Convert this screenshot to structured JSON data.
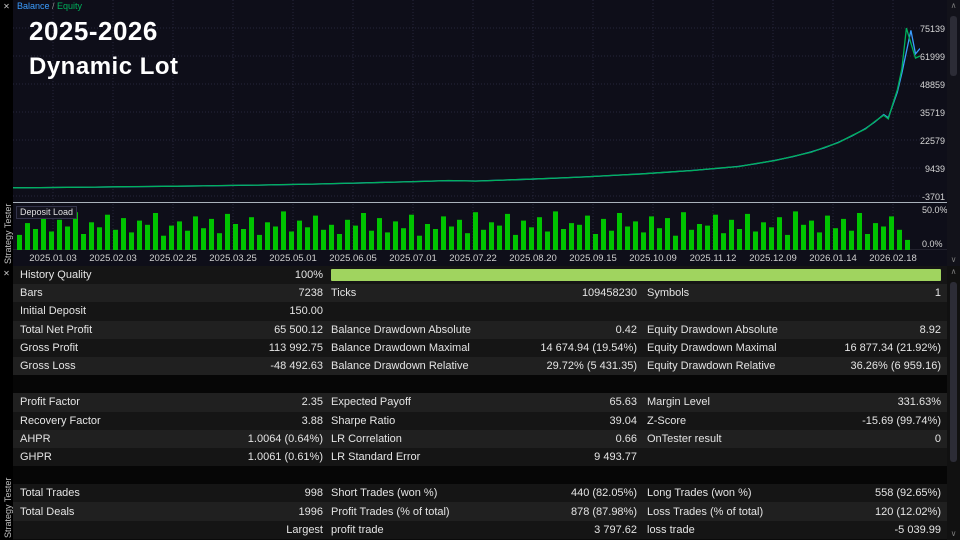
{
  "tabs": {
    "top_label": "Strategy Tester",
    "bottom_label": "Strategy Tester"
  },
  "colors": {
    "balance": "#3b9dff",
    "equity": "#00b15c",
    "deposit": "#00c400",
    "quality_bar": "#a0d45f",
    "chart_bg": "#0e0e19"
  },
  "chart": {
    "legend": {
      "balance": "Balance",
      "sep": " / ",
      "equity": "Equity"
    },
    "overlay_title": "2025-2026",
    "overlay_subtitle": "Dynamic Lot",
    "deposit_label": "Deposit Load",
    "deposit_max_label": "50.0%",
    "deposit_min_label": "0.0%"
  },
  "chart_data": {
    "type": "line",
    "title": "Balance / Equity backtest curve",
    "y_ticks": [
      75139,
      61999,
      48859,
      35719,
      22579,
      9439,
      -3701
    ],
    "ylim": [
      -3701,
      75139
    ],
    "x_ticks": [
      "2025.01.03",
      "2025.02.03",
      "2025.02.25",
      "2025.03.25",
      "2025.05.01",
      "2025.06.05",
      "2025.07.01",
      "2025.07.22",
      "2025.08.20",
      "2025.09.15",
      "2025.10.09",
      "2025.11.12",
      "2025.12.09",
      "2026.01.14",
      "2026.02.18"
    ],
    "x": [
      0,
      0.03,
      0.06,
      0.09,
      0.12,
      0.15,
      0.18,
      0.21,
      0.24,
      0.27,
      0.3,
      0.33,
      0.36,
      0.39,
      0.42,
      0.45,
      0.48,
      0.51,
      0.54,
      0.57,
      0.6,
      0.63,
      0.66,
      0.69,
      0.72,
      0.75,
      0.78,
      0.8,
      0.82,
      0.84,
      0.86,
      0.88,
      0.895,
      0.91,
      0.925,
      0.94,
      0.95,
      0.96,
      0.965,
      0.97,
      0.975,
      0.98,
      0.985,
      0.99,
      0.995,
      1.0
    ],
    "series": [
      {
        "name": "Balance",
        "color": "#3b9dff",
        "values": [
          150,
          250,
          350,
          480,
          620,
          760,
          900,
          1060,
          1240,
          1430,
          1650,
          1900,
          2180,
          2480,
          2800,
          3150,
          3520,
          3350,
          3750,
          4200,
          4700,
          5250,
          5900,
          6600,
          7400,
          8300,
          9400,
          10200,
          11500,
          13000,
          14800,
          17000,
          19000,
          21500,
          24500,
          28000,
          31000,
          34500,
          33000,
          39000,
          45000,
          54000,
          64000,
          74000,
          63000,
          65500
        ]
      },
      {
        "name": "Equity",
        "color": "#00b15c",
        "values": [
          150,
          240,
          370,
          460,
          640,
          740,
          920,
          1040,
          1260,
          1410,
          1680,
          1870,
          2210,
          2450,
          2830,
          3120,
          3560,
          3300,
          3780,
          4170,
          4730,
          5210,
          5950,
          6550,
          7450,
          8250,
          9470,
          10100,
          11600,
          12900,
          14900,
          16800,
          19200,
          21300,
          24700,
          27800,
          31200,
          34200,
          32500,
          39500,
          46000,
          56000,
          75100,
          68000,
          61000,
          62000
        ]
      }
    ],
    "deposit_load": {
      "type": "bar",
      "color": "#00c400",
      "ylim_percent": [
        0,
        50
      ],
      "values": [
        18,
        32,
        25,
        41,
        22,
        36,
        28,
        45,
        19,
        33,
        27,
        42,
        24,
        38,
        21,
        35,
        30,
        44,
        17,
        29,
        34,
        23,
        40,
        26,
        37,
        20,
        43,
        31,
        25,
        39,
        18,
        33,
        28,
        46,
        22,
        35,
        27,
        41,
        24,
        30,
        19,
        36,
        29,
        44,
        23,
        38,
        21,
        34,
        26,
        42,
        17,
        31,
        25,
        40,
        28,
        36,
        20,
        45,
        24,
        33,
        29,
        43,
        18,
        35,
        27,
        39,
        22,
        46,
        25,
        32,
        30,
        41,
        19,
        37,
        23,
        44,
        28,
        34,
        21,
        40,
        26,
        38,
        17,
        45,
        24,
        31,
        29,
        42,
        20,
        36,
        25,
        43,
        22,
        33,
        27,
        39,
        18,
        46,
        30,
        35,
        21,
        41,
        26,
        37,
        23,
        44,
        19,
        32,
        28,
        40,
        24,
        12
      ]
    }
  },
  "table": {
    "rows": [
      {
        "c": [
          "History Quality",
          "100%",
          "",
          "",
          "",
          ""
        ],
        "quality": true
      },
      {
        "c": [
          "Bars",
          "7238",
          "Ticks",
          "109458230",
          "Symbols",
          "1"
        ]
      },
      {
        "c": [
          "Initial Deposit",
          "150.00",
          "",
          "",
          "",
          ""
        ]
      },
      {
        "c": [
          "Total Net Profit",
          "65 500.12",
          "Balance Drawdown Absolute",
          "0.42",
          "Equity Drawdown Absolute",
          "8.92"
        ]
      },
      {
        "c": [
          "Gross Profit",
          "113 992.75",
          "Balance Drawdown Maximal",
          "14 674.94 (19.54%)",
          "Equity Drawdown Maximal",
          "16 877.34 (21.92%)"
        ]
      },
      {
        "c": [
          "Gross Loss",
          "-48 492.63",
          "Balance Drawdown Relative",
          "29.72% (5 431.35)",
          "Equity Drawdown Relative",
          "36.26% (6 959.16)"
        ]
      },
      {
        "c": [
          "",
          "",
          "",
          "",
          "",
          ""
        ],
        "spacer": true
      },
      {
        "c": [
          "Profit Factor",
          "2.35",
          "Expected Payoff",
          "65.63",
          "Margin Level",
          "331.63%"
        ]
      },
      {
        "c": [
          "Recovery Factor",
          "3.88",
          "Sharpe Ratio",
          "39.04",
          "Z-Score",
          "-15.69 (99.74%)"
        ]
      },
      {
        "c": [
          "AHPR",
          "1.0064 (0.64%)",
          "LR Correlation",
          "0.66",
          "OnTester result",
          "0"
        ]
      },
      {
        "c": [
          "GHPR",
          "1.0061 (0.61%)",
          "LR Standard Error",
          "9 493.77",
          "",
          ""
        ]
      },
      {
        "c": [
          "",
          "",
          "",
          "",
          "",
          ""
        ],
        "spacer": true
      },
      {
        "c": [
          "Total Trades",
          "998",
          "Short Trades (won %)",
          "440 (82.05%)",
          "Long Trades (won %)",
          "558 (92.65%)"
        ]
      },
      {
        "c": [
          "Total Deals",
          "1996",
          "Profit Trades (% of total)",
          "878 (87.98%)",
          "Loss Trades (% of total)",
          "120 (12.02%)"
        ]
      },
      {
        "c": [
          "",
          "Largest",
          "profit trade",
          "3 797.62",
          "loss trade",
          "-5 039.99"
        ]
      }
    ]
  },
  "scrollbar": {
    "up_glyph": "∧",
    "down_glyph": "∨",
    "close_glyph": "✕"
  }
}
